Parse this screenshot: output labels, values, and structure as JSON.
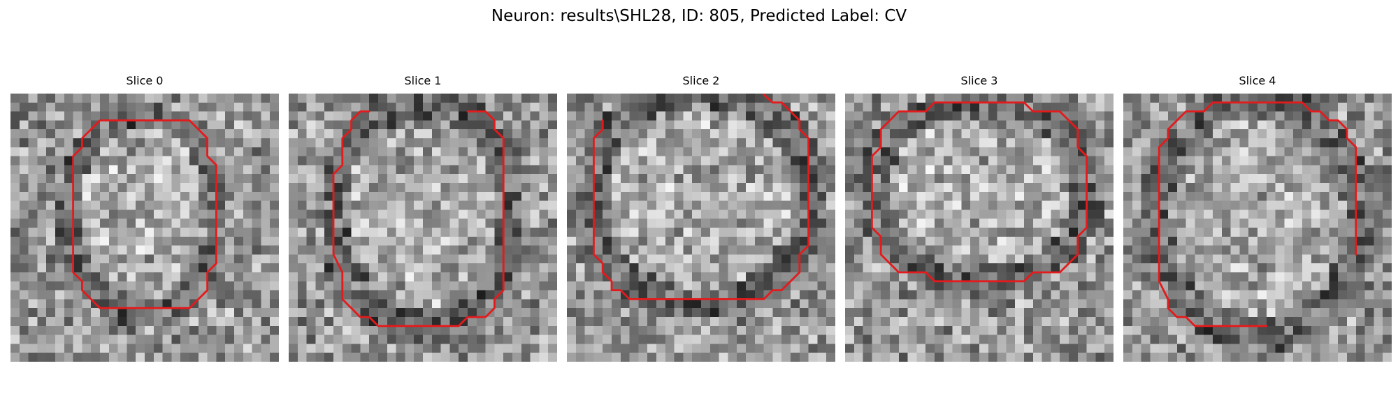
{
  "figure": {
    "title": "Neuron: results\\SHL28, ID: 805, Predicted Label: CV",
    "contour_color": "#e41a1c",
    "colormap": "gray"
  },
  "panels": [
    {
      "title": "Slice 0",
      "seed": 11
    },
    {
      "title": "Slice 1",
      "seed": 23
    },
    {
      "title": "Slice 2",
      "seed": 37
    },
    {
      "title": "Slice 3",
      "seed": 41
    },
    {
      "title": "Slice 4",
      "seed": 53
    }
  ]
}
